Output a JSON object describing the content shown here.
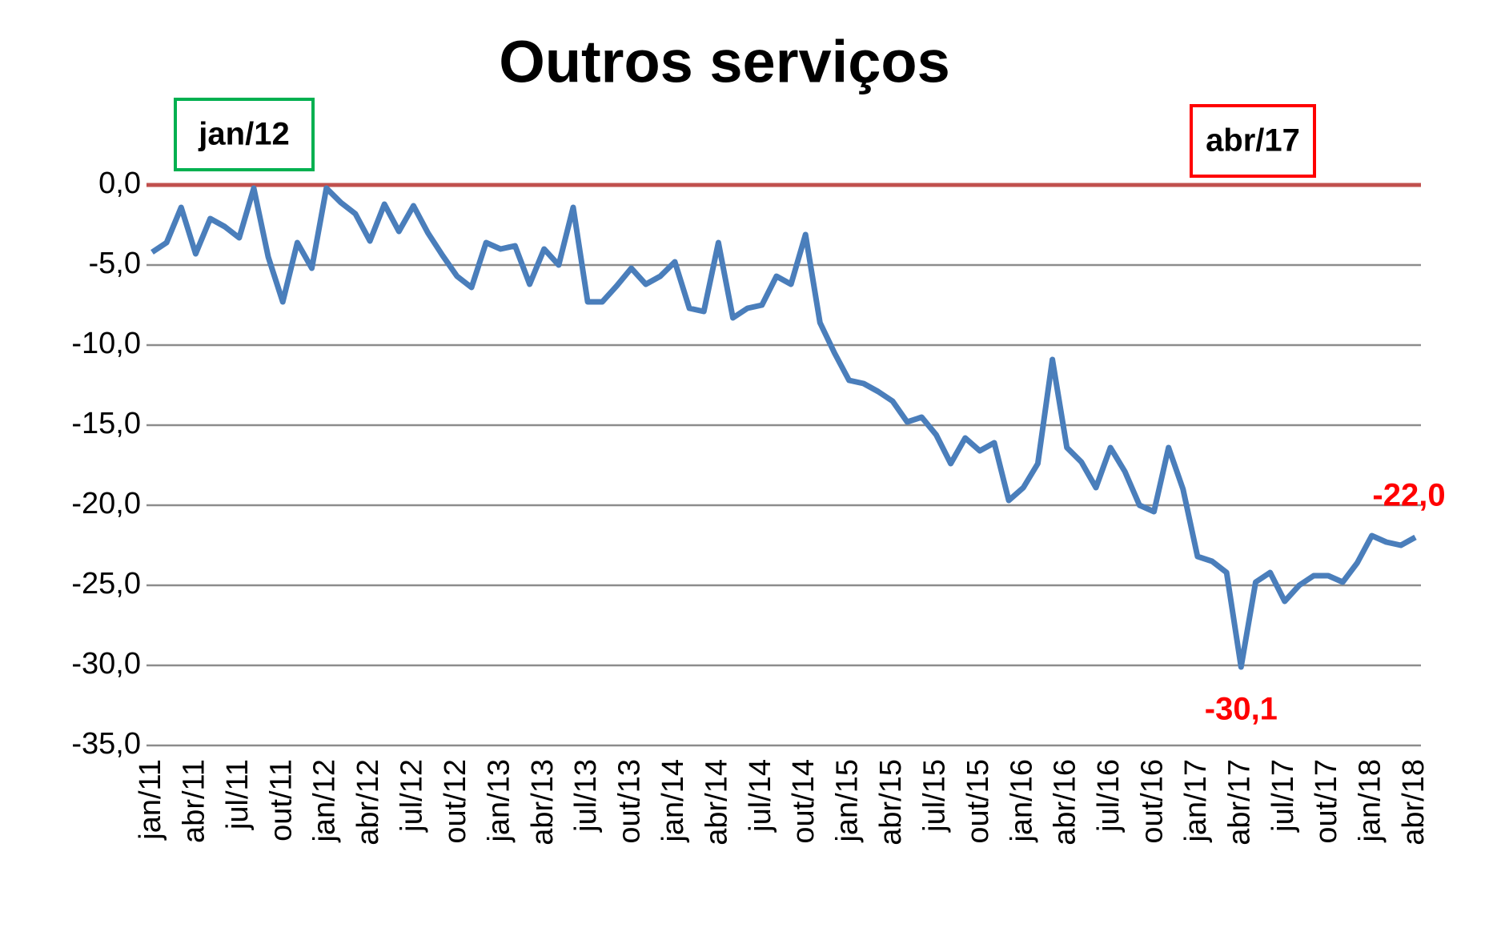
{
  "chart_data": {
    "type": "line",
    "title": "Outros serviços",
    "categories": [
      "jan/11",
      null,
      null,
      "abr/11",
      null,
      null,
      "jul/11",
      null,
      null,
      "out/11",
      null,
      null,
      "jan/12",
      null,
      null,
      "abr/12",
      null,
      null,
      "jul/12",
      null,
      null,
      "out/12",
      null,
      null,
      "jan/13",
      null,
      null,
      "abr/13",
      null,
      null,
      "jul/13",
      null,
      null,
      "out/13",
      null,
      null,
      "jan/14",
      null,
      null,
      "abr/14",
      null,
      null,
      "jul/14",
      null,
      null,
      "out/14",
      null,
      null,
      "jan/15",
      null,
      null,
      "abr/15",
      null,
      null,
      "jul/15",
      null,
      null,
      "out/15",
      null,
      null,
      "jan/16",
      null,
      null,
      "abr/16",
      null,
      null,
      "jul/16",
      null,
      null,
      "out/16",
      null,
      null,
      "jan/17",
      null,
      null,
      "abr/17",
      null,
      null,
      "jul/17",
      null,
      null,
      "out/17",
      null,
      null,
      "jan/18",
      null,
      null,
      "abr/18"
    ],
    "values": [
      -4.2,
      -3.6,
      -1.4,
      -4.3,
      -2.1,
      -2.6,
      -3.3,
      -0.2,
      -4.5,
      -7.3,
      -3.6,
      -5.2,
      -0.2,
      -1.1,
      -1.8,
      -3.5,
      -1.2,
      -2.9,
      -1.3,
      -3.0,
      -4.4,
      -5.7,
      -6.4,
      -3.6,
      -4.0,
      -3.8,
      -6.2,
      -4.0,
      -5.0,
      -1.4,
      -7.3,
      -7.3,
      -6.3,
      -5.2,
      -6.2,
      -5.7,
      -4.8,
      -7.7,
      -7.9,
      -3.6,
      -8.3,
      -7.7,
      -7.5,
      -5.7,
      -6.2,
      -3.1,
      -8.6,
      -10.5,
      -12.2,
      -12.4,
      -12.9,
      -13.5,
      -14.8,
      -14.5,
      -15.6,
      -17.4,
      -15.8,
      -16.6,
      -16.1,
      -19.7,
      -18.9,
      -17.4,
      -10.9,
      -16.4,
      -17.3,
      -18.9,
      -16.4,
      -17.9,
      -20.0,
      -20.4,
      -16.4,
      -19.0,
      -23.2,
      -23.5,
      -24.2,
      -30.1,
      -24.8,
      -24.2,
      -26.0,
      -25.0,
      -24.4,
      -24.4,
      -24.8,
      -23.6,
      -21.9,
      -22.3,
      -22.5,
      -22.0
    ],
    "value_labels": [
      null,
      null,
      null,
      null,
      null,
      null,
      null,
      null,
      null,
      null,
      null,
      null,
      null,
      null,
      null,
      null,
      null,
      null,
      null,
      null,
      null,
      null,
      null,
      null,
      null,
      null,
      null,
      null,
      null,
      null,
      null,
      null,
      null,
      null,
      null,
      null,
      null,
      null,
      null,
      null,
      null,
      null,
      null,
      null,
      null,
      null,
      null,
      null,
      null,
      null,
      null,
      null,
      null,
      null,
      null,
      null,
      null,
      null,
      null,
      null,
      null,
      null,
      null,
      null,
      null,
      null,
      null,
      null,
      null,
      null,
      null,
      null,
      null,
      null,
      null,
      "-30,1",
      null,
      null,
      null,
      null,
      null,
      null,
      null,
      null,
      null,
      null,
      null,
      "-22,0"
    ],
    "color": "#4a7ebb",
    "value_label_color": "#ff0000",
    "ylim": [
      -35,
      0
    ],
    "yticks": [
      {
        "value": -35,
        "label": "-35,0"
      },
      {
        "value": -30,
        "label": "-30,0"
      },
      {
        "value": -25,
        "label": "-25,0"
      },
      {
        "value": -20,
        "label": "-20,0"
      },
      {
        "value": -15,
        "label": "-15,0"
      },
      {
        "value": -10,
        "label": "-10,0"
      },
      {
        "value": -5,
        "label": "-5,0"
      },
      {
        "value": 0,
        "label": "0,0"
      }
    ],
    "grid": true,
    "reference_line": {
      "value": 0,
      "color": "#c0504d"
    },
    "annotations": [
      {
        "text": "jan/12",
        "color": "#00b050"
      },
      {
        "text": "abr/17",
        "color": "#ff0000"
      }
    ]
  }
}
